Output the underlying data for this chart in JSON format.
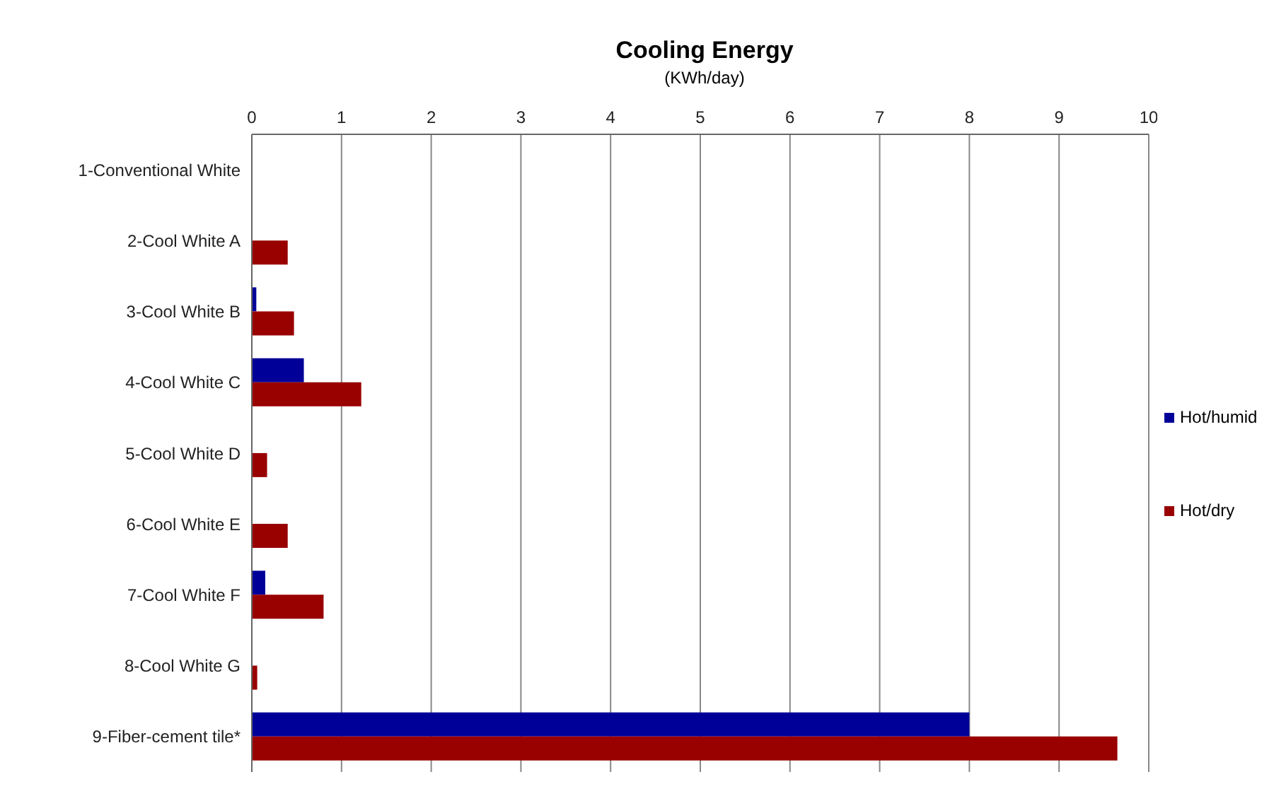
{
  "chart_data": {
    "type": "bar",
    "orientation": "horizontal",
    "title": "Cooling Energy",
    "subtitle": "(KWh/day)",
    "categories": [
      "1-Conventional White",
      "2-Cool White A",
      "3-Cool White B",
      "4-Cool White C",
      "5-Cool White D",
      "6-Cool White E",
      "7-Cool White F",
      "8-Cool White G",
      "9-Fiber-cement tile*"
    ],
    "series": [
      {
        "name": "Hot/humid",
        "color": "#000099",
        "values": [
          0,
          0,
          0.05,
          0.58,
          0,
          0,
          0.15,
          0,
          8.0
        ]
      },
      {
        "name": "Hot/dry",
        "color": "#990000",
        "values": [
          0,
          0.4,
          0.47,
          1.22,
          0.17,
          0.4,
          0.8,
          0.06,
          9.65
        ]
      }
    ],
    "xlim": [
      0,
      10
    ],
    "xticks": [
      0,
      1,
      2,
      3,
      4,
      5,
      6,
      7,
      8,
      9,
      10
    ],
    "grid": "x",
    "legend": "right"
  }
}
